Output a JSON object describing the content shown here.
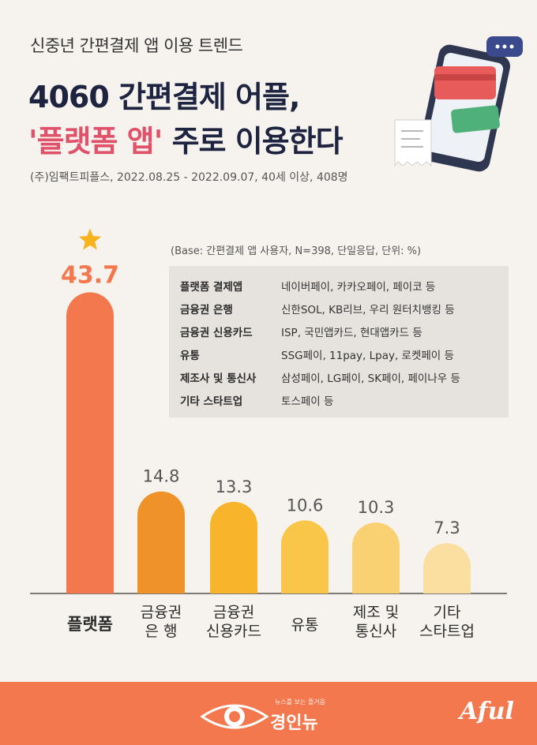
{
  "header": {
    "subtitle": "신중년 간편결제 앱 이용 트렌드",
    "title_line1": "4060 간편결제 어플,",
    "title_line2_accent": "'플랫폼 앱'",
    "title_line2_rest": " 주로 이용한다",
    "source": "(주)임팩트피플스,  2022.08.25 - 2022.09.07, 40세 이상, 408명"
  },
  "note": {
    "base": "(Base: 간편결제 앱 사용자, N=398, 단일응답, 단위: %)"
  },
  "legend": [
    {
      "category": "플랫폼 결제앱",
      "examples": "네이버페이, 카카오페이, 페이코 등"
    },
    {
      "category": "금융권 은행",
      "examples": "신한SOL, KB리브, 우리 원터치뱅킹 등"
    },
    {
      "category": "금융권 신용카드",
      "examples": "ISP, 국민앱카드, 현대앱카드 등"
    },
    {
      "category": "유통",
      "examples": "SSG페이, 11pay, Lpay, 로켓페이 등"
    },
    {
      "category": "제조사 및 통신사",
      "examples": "삼성페이, LG페이, SK페이, 페이나우 등"
    },
    {
      "category": "기타 스타트업",
      "examples": "토스페이 등"
    }
  ],
  "chart_data": {
    "type": "bar",
    "categories": [
      [
        "플랫폼"
      ],
      [
        "금융권",
        "은  행"
      ],
      [
        "금융권",
        "신용카드"
      ],
      [
        "유통"
      ],
      [
        "제조 및",
        "통신사"
      ],
      [
        "기타",
        "스타트업"
      ]
    ],
    "values": [
      43.7,
      14.8,
      13.3,
      10.6,
      10.3,
      7.3
    ],
    "value_labels": [
      "43.7",
      "14.8",
      "13.3",
      "10.6",
      "10.3",
      "7.3"
    ],
    "bar_colors": [
      "#f4784e",
      "#ef922a",
      "#f8b52c",
      "#f9c64a",
      "#fad172",
      "#fbdfa0"
    ],
    "label_colors": [
      "#f4784e",
      "#555555",
      "#555555",
      "#555555",
      "#555555",
      "#555555"
    ],
    "highlight_icon": "star-icon",
    "ylim": [
      0,
      45
    ],
    "title": "",
    "xlabel": "",
    "ylabel": ""
  },
  "footer": {
    "tagline": "뉴스를 보는 즐거움",
    "publisher": "경인뉴",
    "brand": "Aful"
  }
}
